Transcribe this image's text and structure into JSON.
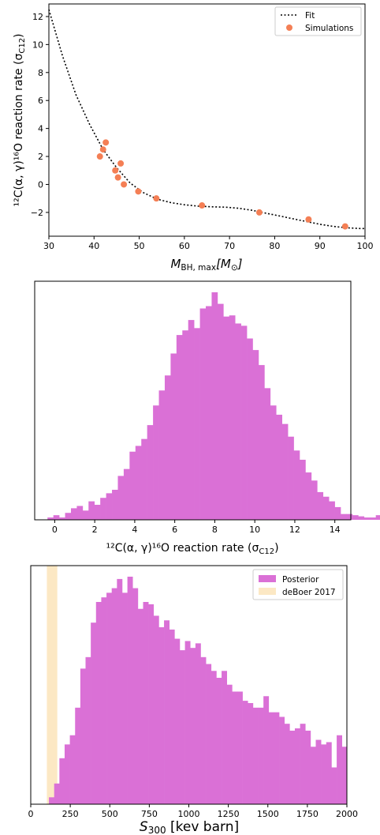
{
  "chart_data": [
    {
      "type": "scatter",
      "xlim": [
        30,
        100
      ],
      "ylim": [
        -3.7,
        12.9
      ],
      "xticks": [
        30,
        40,
        50,
        60,
        70,
        80,
        90,
        100
      ],
      "yticks": [
        -2,
        0,
        2,
        4,
        6,
        8,
        10,
        12
      ],
      "xlabel_main": "M",
      "xlabel_sub": "BH, max",
      "xlabel_unit": "[M",
      "xlabel_unit_sub": "⊙",
      "xlabel_close": "]",
      "ylabel": "¹²C(α, γ)¹⁶O reaction rate (σ",
      "ylabel_sub": "C12",
      "ylabel_close": ")",
      "legend": {
        "position": "top-right",
        "entries": [
          "Fit",
          "Simulations"
        ]
      },
      "fit_color": "#000000",
      "point_color": "#f47f55",
      "fit": {
        "x": [
          30,
          33,
          36,
          39,
          42,
          45,
          48,
          51,
          54,
          57,
          60,
          63,
          66,
          69,
          72,
          75,
          78,
          81,
          84,
          87,
          90,
          93,
          96,
          99,
          100
        ],
        "y": [
          12.5,
          9.2,
          6.4,
          4.3,
          2.5,
          1.2,
          0.1,
          -0.6,
          -1.05,
          -1.3,
          -1.45,
          -1.55,
          -1.6,
          -1.62,
          -1.7,
          -1.85,
          -2.05,
          -2.25,
          -2.45,
          -2.65,
          -2.85,
          -3.0,
          -3.1,
          -3.15,
          -3.15
        ]
      },
      "points": {
        "x": [
          41.3,
          42.0,
          42.6,
          44.7,
          45.3,
          45.9,
          46.6,
          49.8,
          53.8,
          63.9,
          76.6,
          87.5,
          95.6
        ],
        "y": [
          2.0,
          2.5,
          3.0,
          1.0,
          0.5,
          1.5,
          0.0,
          -0.5,
          -1.0,
          -1.5,
          -2.0,
          -2.5,
          -3.0
        ]
      }
    },
    {
      "type": "bar",
      "xlim": [
        -1.0,
        14.8
      ],
      "xticks": [
        0,
        2,
        4,
        6,
        8,
        10,
        12,
        14
      ],
      "xlabel": "¹²C(α, γ)¹⁶O reaction rate (σ",
      "xlabel_sub": "C12",
      "xlabel_close": ")",
      "color": "#da70d6",
      "bin_start": -0.36,
      "bin_width": 0.293,
      "counts": [
        2,
        4,
        2,
        6,
        10,
        12,
        8,
        16,
        13,
        19,
        23,
        26,
        38,
        44,
        59,
        64,
        70,
        82,
        99,
        112,
        125,
        144,
        160,
        164,
        173,
        166,
        183,
        185,
        197,
        187,
        176,
        177,
        170,
        168,
        157,
        147,
        134,
        114,
        99,
        91,
        83,
        72,
        60,
        52,
        41,
        34,
        24,
        20,
        16,
        11,
        5,
        5,
        4,
        3,
        2,
        2,
        4,
        3,
        2,
        1,
        1,
        1,
        0,
        0,
        0,
        0,
        1
      ]
    },
    {
      "type": "bar",
      "xlim": [
        0,
        2000
      ],
      "xticks": [
        0,
        250,
        500,
        750,
        1000,
        1250,
        1500,
        1750,
        2000
      ],
      "xlabel_main": "S",
      "xlabel_sub": "300",
      "xlabel_unit": " [kev barn]",
      "legend": {
        "position": "top-right",
        "entries": [
          "Posterior",
          "deBoer 2017"
        ]
      },
      "color": "#da70d6",
      "band_color": "#fce8c4",
      "band": [
        102,
        168
      ],
      "bin_start": 115,
      "bin_width": 33.1,
      "counts": [
        3,
        9,
        20,
        26,
        30,
        42,
        59,
        64,
        79,
        88,
        90,
        92,
        94,
        98,
        92,
        99,
        94,
        85,
        88,
        87,
        82,
        77,
        80,
        76,
        72,
        67,
        71,
        68,
        70,
        64,
        61,
        58,
        55,
        58,
        52,
        49,
        49,
        45,
        44,
        42,
        42,
        47,
        40,
        40,
        38,
        35,
        32,
        33,
        35,
        32,
        25,
        28,
        26,
        27,
        16,
        30,
        25
      ]
    }
  ]
}
